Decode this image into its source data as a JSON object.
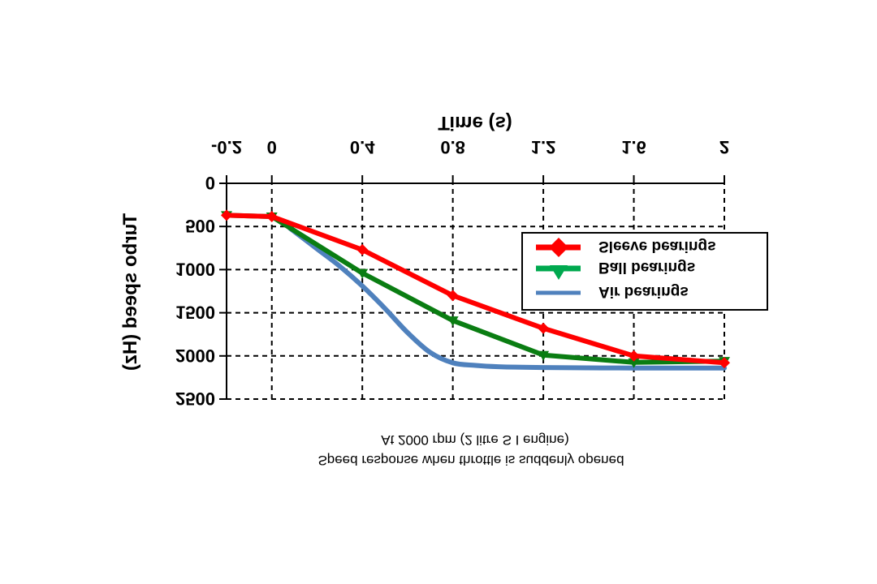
{
  "orientation": "vertically-flipped",
  "chart_data": {
    "type": "line",
    "title": "",
    "xlabel": "Time (s)",
    "ylabel": "Turbo speed (Hz)",
    "xlim": [
      -0.2,
      2
    ],
    "ylim": [
      0,
      2500
    ],
    "xticks": [
      -0.2,
      0,
      0.4,
      0.8,
      1.2,
      1.6,
      2
    ],
    "xtick_labels": [
      "-0.2",
      "0",
      "0.4",
      "0.8",
      "1.2",
      "1.6",
      "2"
    ],
    "yticks": [
      0,
      500,
      1000,
      1500,
      2000,
      2500
    ],
    "ytick_labels": [
      "0",
      "500",
      "1000",
      "1500",
      "2000",
      "2500"
    ],
    "grid": true,
    "legend_position": "right",
    "series": [
      {
        "name": "Air bearings",
        "color": "#4F81BD",
        "marker": "none",
        "smooth": true,
        "x": [
          0.08,
          0.2,
          0.3,
          0.4,
          0.5,
          0.6,
          0.7,
          0.8,
          0.9,
          1.0,
          1.2,
          1.6,
          2.0
        ],
        "y": [
          520,
          760,
          960,
          1190,
          1450,
          1730,
          1960,
          2080,
          2110,
          2125,
          2135,
          2140,
          2140
        ]
      },
      {
        "name": "Ball bearings",
        "color": "#0A7D12",
        "legend_color": "#00A94F",
        "marker": "triangle",
        "x": [
          -0.2,
          0,
          0.4,
          0.8,
          1.2,
          1.6,
          2.0
        ],
        "y": [
          370,
          385,
          1040,
          1590,
          1990,
          2075,
          2060
        ]
      },
      {
        "name": "Sleeve bearings",
        "color": "#FF0000",
        "marker": "diamond",
        "x": [
          -0.2,
          0,
          0.4,
          0.8,
          1.2,
          1.6,
          2.0
        ],
        "y": [
          370,
          385,
          770,
          1300,
          1680,
          2000,
          2080
        ]
      }
    ],
    "caption": [
      "Speed response when throttle is suddenly opened",
      "At 2000 rpm (2 litre S I engine)"
    ]
  }
}
